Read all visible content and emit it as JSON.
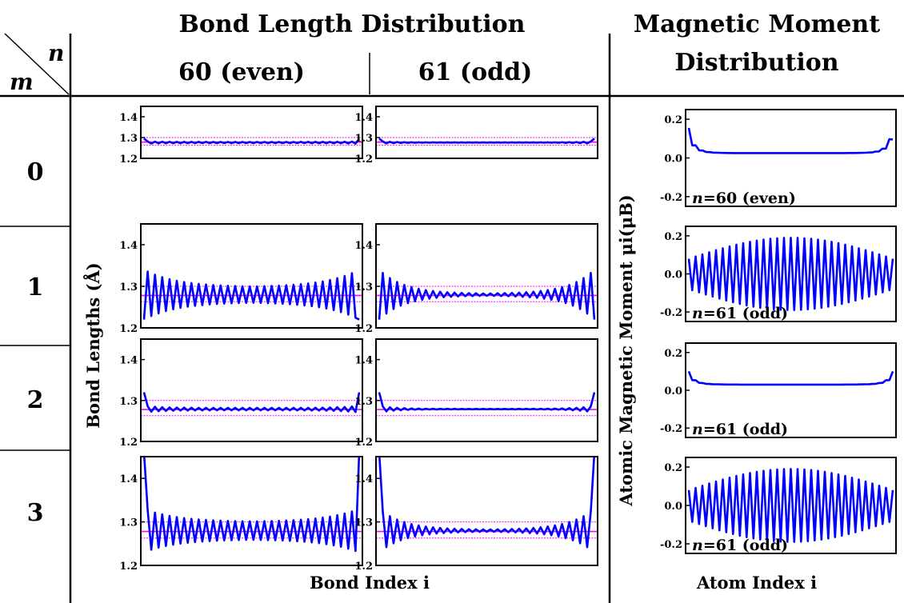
{
  "headers": {
    "bond_title": "Bond Length Distribution",
    "magnetic_title_line1": "Magnetic Moment",
    "magnetic_title_line2": "Distribution",
    "col_even": "60 (even)",
    "col_odd": "61 (odd)",
    "corner_n": "n",
    "corner_m": "m",
    "rows": [
      "0",
      "1",
      "2",
      "3"
    ]
  },
  "axes": {
    "bond_ylabel": "Bond Lengths (Å)",
    "bond_xlabel": "Bond Index i",
    "mag_ylabel": "Atomic Magnetic Moment μi(μB)",
    "mag_xlabel": "Atom Index i"
  },
  "colors": {
    "bond_line": "#0000ff",
    "reference_line": "#ff00ff",
    "mag_line": "#0000ff",
    "frame": "#000000"
  },
  "chart_data": [
    {
      "type": "line",
      "panel": "bond",
      "m": 0,
      "n": 60,
      "ylim": [
        1.2,
        1.45
      ],
      "yticks": [
        "1.2",
        "1.3",
        "1.4"
      ],
      "reference_lines": [
        1.263,
        1.278,
        1.3
      ],
      "points": 60,
      "mean": 1.276,
      "center_amp": 0.003,
      "edge_amp": 0.006,
      "edge_decay": 4,
      "first_value": 1.295
    },
    {
      "type": "line",
      "panel": "bond",
      "m": 0,
      "n": 61,
      "ylim": [
        1.2,
        1.45
      ],
      "yticks": [
        "1.2",
        "1.3",
        "1.4"
      ],
      "reference_lines": [
        1.263,
        1.278,
        1.3
      ],
      "points": 61,
      "mean": 1.276,
      "center_amp": 0.0005,
      "edge_amp": 0.006,
      "edge_decay": 5,
      "first_value": 1.295
    },
    {
      "type": "line",
      "panel": "bond",
      "m": 1,
      "n": 60,
      "ylim": [
        1.2,
        1.45
      ],
      "yticks": [
        "1.2",
        "1.3",
        "1.4"
      ],
      "reference_lines": [
        1.263,
        1.278,
        1.3
      ],
      "points": 60,
      "mean": 1.28,
      "center_amp": 0.018,
      "edge_amp": 0.06,
      "edge_decay": 9,
      "first_value": 1.22
    },
    {
      "type": "line",
      "panel": "bond",
      "m": 1,
      "n": 61,
      "ylim": [
        1.2,
        1.45
      ],
      "yticks": [
        "1.2",
        "1.3",
        "1.4"
      ],
      "reference_lines": [
        1.263,
        1.278,
        1.3
      ],
      "points": 61,
      "mean": 1.28,
      "center_amp": 0.002,
      "edge_amp": 0.06,
      "edge_decay": 7,
      "first_value": 1.22
    },
    {
      "type": "line",
      "panel": "bond",
      "m": 2,
      "n": 60,
      "ylim": [
        1.2,
        1.45
      ],
      "yticks": [
        "1.2",
        "1.3",
        "1.4"
      ],
      "reference_lines": [
        1.263,
        1.278,
        1.3
      ],
      "points": 60,
      "mean": 1.279,
      "center_amp": 0.003,
      "edge_amp": 0.008,
      "edge_decay": 5,
      "first_value": 1.32
    },
    {
      "type": "line",
      "panel": "bond",
      "m": 2,
      "n": 61,
      "ylim": [
        1.2,
        1.45
      ],
      "yticks": [
        "1.2",
        "1.3",
        "1.4"
      ],
      "reference_lines": [
        1.263,
        1.278,
        1.3
      ],
      "points": 61,
      "mean": 1.279,
      "center_amp": 0.0005,
      "edge_amp": 0.008,
      "edge_decay": 5,
      "first_value": 1.32
    },
    {
      "type": "line",
      "panel": "bond",
      "m": 3,
      "n": 60,
      "ylim": [
        1.2,
        1.45
      ],
      "yticks": [
        "1.2",
        "1.3",
        "1.4"
      ],
      "reference_lines": [
        1.263,
        1.278,
        1.3
      ],
      "points": 60,
      "mean": 1.28,
      "center_amp": 0.02,
      "edge_amp": 0.05,
      "edge_decay": 9,
      "first_value": 1.46
    },
    {
      "type": "line",
      "panel": "bond",
      "m": 3,
      "n": 61,
      "ylim": [
        1.2,
        1.45
      ],
      "yticks": [
        "1.2",
        "1.3",
        "1.4"
      ],
      "reference_lines": [
        1.263,
        1.278,
        1.3
      ],
      "points": 61,
      "mean": 1.28,
      "center_amp": 0.002,
      "edge_amp": 0.05,
      "edge_decay": 7,
      "first_value": 1.46
    },
    {
      "type": "line",
      "panel": "magnetic",
      "m": 0,
      "n": 60,
      "label": "n=60 (even)",
      "ylim": [
        -0.25,
        0.25
      ],
      "yticks": [
        "0.2",
        "0.0",
        "-0.2"
      ],
      "points": 60,
      "pattern": "flat",
      "base": 0.025,
      "edge_amp": 0.12
    },
    {
      "type": "line",
      "panel": "magnetic",
      "m": 1,
      "n": 61,
      "label": "n=61 (odd)",
      "ylim": [
        -0.25,
        0.25
      ],
      "yticks": [
        "0.2",
        "0.0",
        "-0.2"
      ],
      "points": 61,
      "pattern": "oscillating",
      "center_amp": 0.19,
      "edge_amp": 0.08
    },
    {
      "type": "line",
      "panel": "magnetic",
      "m": 2,
      "n": 61,
      "label": "n=61 (odd)",
      "ylim": [
        -0.25,
        0.25
      ],
      "yticks": [
        "0.2",
        "0.0",
        "-0.2"
      ],
      "points": 61,
      "pattern": "flat",
      "base": 0.03,
      "edge_amp": 0.06
    },
    {
      "type": "line",
      "panel": "magnetic",
      "m": 3,
      "n": 61,
      "label": "n=61 (odd)",
      "ylim": [
        -0.25,
        0.25
      ],
      "yticks": [
        "0.2",
        "0.0",
        "-0.2"
      ],
      "points": 61,
      "pattern": "oscillating",
      "center_amp": 0.19,
      "edge_amp": 0.08
    }
  ]
}
